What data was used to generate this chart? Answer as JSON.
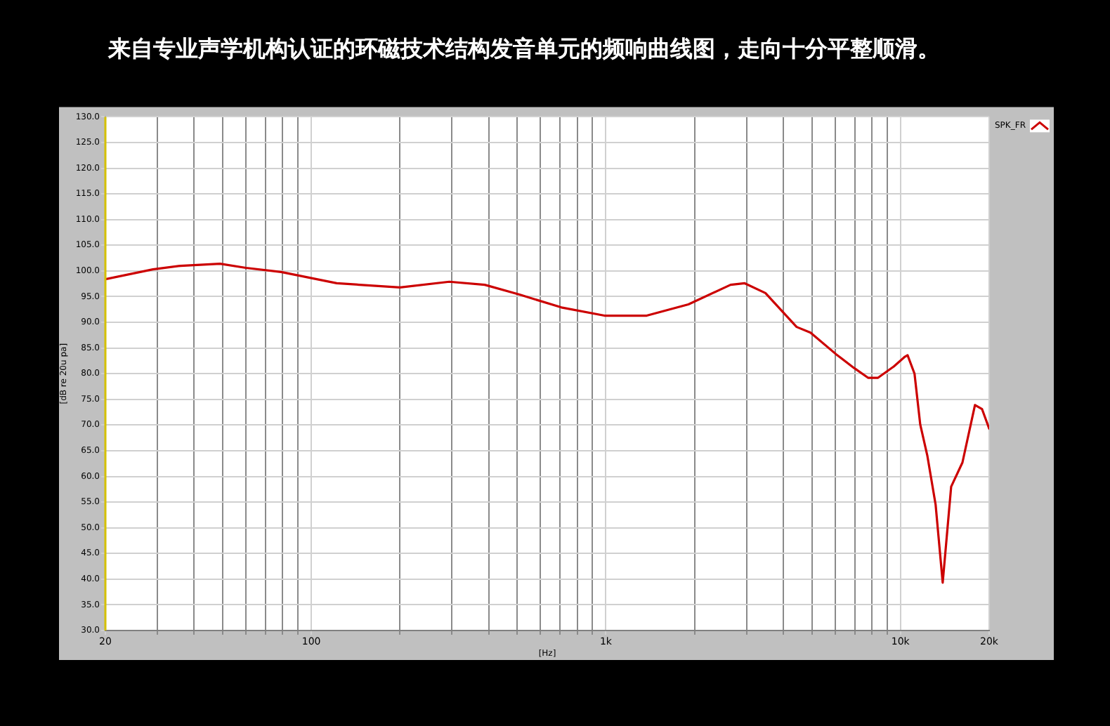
{
  "chart_data": {
    "type": "line",
    "title": "来自专业声学机构认证的环磁技术结构发音单元的频响曲线图，走向十分平整顺滑。",
    "xlabel": "[Hz]",
    "ylabel": "[dB re 20u pa]",
    "log": "x",
    "grid": true,
    "legend": "top right",
    "marker": "none",
    "line_style": "solid",
    "xlim": [
      20,
      20000
    ],
    "ylim": [
      30,
      130
    ],
    "xticks": [
      {
        "value": 20,
        "label": "20"
      },
      {
        "value": 30,
        "label": null
      },
      {
        "value": 40,
        "label": null
      },
      {
        "value": 50,
        "label": null
      },
      {
        "value": 60,
        "label": null
      },
      {
        "value": 70,
        "label": null
      },
      {
        "value": 80,
        "label": null
      },
      {
        "value": 90,
        "label": null
      },
      {
        "value": 100,
        "label": "100"
      },
      {
        "value": 200,
        "label": null
      },
      {
        "value": 300,
        "label": null
      },
      {
        "value": 400,
        "label": null
      },
      {
        "value": 500,
        "label": null
      },
      {
        "value": 600,
        "label": null
      },
      {
        "value": 700,
        "label": null
      },
      {
        "value": 800,
        "label": null
      },
      {
        "value": 900,
        "label": null
      },
      {
        "value": 1000,
        "label": "1k"
      },
      {
        "value": 2000,
        "label": null
      },
      {
        "value": 3000,
        "label": null
      },
      {
        "value": 4000,
        "label": null
      },
      {
        "value": 5000,
        "label": null
      },
      {
        "value": 6000,
        "label": null
      },
      {
        "value": 7000,
        "label": null
      },
      {
        "value": 8000,
        "label": null
      },
      {
        "value": 9000,
        "label": null
      },
      {
        "value": 10000,
        "label": "10k"
      },
      {
        "value": 20000,
        "label": "20k"
      }
    ],
    "yticks": [
      {
        "value": 30,
        "label": "30.0"
      },
      {
        "value": 35,
        "label": "35.0"
      },
      {
        "value": 40,
        "label": "40.0"
      },
      {
        "value": 45,
        "label": "45.0"
      },
      {
        "value": 50,
        "label": "50.0"
      },
      {
        "value": 55,
        "label": "55.0"
      },
      {
        "value": 60,
        "label": "60.0"
      },
      {
        "value": 65,
        "label": "65.0"
      },
      {
        "value": 70,
        "label": "70.0"
      },
      {
        "value": 75,
        "label": "75.0"
      },
      {
        "value": 80,
        "label": "80.0"
      },
      {
        "value": 85,
        "label": "85.0"
      },
      {
        "value": 90,
        "label": "90.0"
      },
      {
        "value": 95,
        "label": "95.0"
      },
      {
        "value": 100,
        "label": "100.0"
      },
      {
        "value": 105,
        "label": "105.0"
      },
      {
        "value": 110,
        "label": "110.0"
      },
      {
        "value": 115,
        "label": "115.0"
      },
      {
        "value": 120,
        "label": "120.0"
      },
      {
        "value": 125,
        "label": "125.0"
      },
      {
        "value": 130,
        "label": "130.0"
      }
    ],
    "series": [
      {
        "name": "SPK_FR",
        "color": "#cc0000",
        "x": [
          20,
          29,
          36,
          49,
          60,
          79,
          122,
          200,
          294,
          388,
          509,
          706,
          989,
          1376,
          1906,
          2650,
          2960,
          3480,
          4440,
          4950,
          6040,
          6960,
          7760,
          8390,
          9490,
          10350,
          10570,
          11160,
          11670,
          12330,
          13160,
          13910,
          14860,
          16230,
          17900,
          18920,
          20000
        ],
        "values": [
          98.4,
          100.3,
          101,
          101.4,
          100.6,
          99.8,
          97.6,
          96.8,
          97.9,
          97.3,
          95.4,
          92.9,
          91.3,
          91.3,
          93.5,
          97.3,
          97.6,
          95.7,
          89.1,
          88,
          83.8,
          81.1,
          79.2,
          79.2,
          81.4,
          83.3,
          83.6,
          80,
          70.1,
          64.1,
          54.5,
          39.3,
          58,
          62.7,
          73.9,
          73.1,
          69.3
        ]
      }
    ]
  }
}
